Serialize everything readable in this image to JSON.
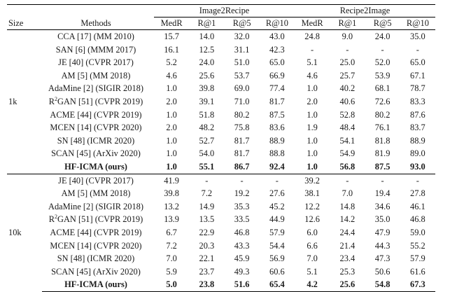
{
  "header": {
    "size": "Size",
    "methods": "Methods",
    "group1": "Image2Recipe",
    "group2": "Recipe2Image",
    "cols": [
      "MedR",
      "R@1",
      "R@5",
      "R@10",
      "MedR",
      "R@1",
      "R@5",
      "R@10"
    ]
  },
  "sections": [
    {
      "size": "1k",
      "rows": [
        {
          "method": "CCA [17] (MM 2010)",
          "values": [
            "15.7",
            "14.0",
            "32.0",
            "43.0",
            "24.8",
            "9.0",
            "24.0",
            "35.0"
          ]
        },
        {
          "method": "SAN [6] (MMM 2017)",
          "values": [
            "16.1",
            "12.5",
            "31.1",
            "42.3",
            "-",
            "-",
            "-",
            "-"
          ]
        },
        {
          "method": "JE [40] (CVPR 2017)",
          "values": [
            "5.2",
            "24.0",
            "51.0",
            "65.0",
            "5.1",
            "25.0",
            "52.0",
            "65.0"
          ]
        },
        {
          "method": "AM [5] (MM 2018)",
          "values": [
            "4.6",
            "25.6",
            "53.7",
            "66.9",
            "4.6",
            "25.7",
            "53.9",
            "67.1"
          ]
        },
        {
          "method": "AdaMine [2] (SIGIR 2018)",
          "values": [
            "1.0",
            "39.8",
            "69.0",
            "77.4",
            "1.0",
            "40.2",
            "68.1",
            "78.7"
          ]
        },
        {
          "method_pre": "R",
          "method_sup": "2",
          "method_post": "GAN [51] (CVPR 2019)",
          "values": [
            "2.0",
            "39.1",
            "71.0",
            "81.7",
            "2.0",
            "40.6",
            "72.6",
            "83.3"
          ]
        },
        {
          "method": "ACME [44] (CVPR 2019)",
          "values": [
            "1.0",
            "51.8",
            "80.2",
            "87.5",
            "1.0",
            "52.8",
            "80.2",
            "87.6"
          ]
        },
        {
          "method": "MCEN [14] (CVPR 2020)",
          "values": [
            "2.0",
            "48.2",
            "75.8",
            "83.6",
            "1.9",
            "48.4",
            "76.1",
            "83.7"
          ]
        },
        {
          "method": "SN [48] (ICMR 2020)",
          "values": [
            "1.0",
            "52.7",
            "81.7",
            "88.9",
            "1.0",
            "54.1",
            "81.8",
            "88.9"
          ]
        },
        {
          "method": "SCAN [45] (ArXiv 2020)",
          "values": [
            "1.0",
            "54.0",
            "81.7",
            "88.8",
            "1.0",
            "54.9",
            "81.9",
            "89.0"
          ]
        },
        {
          "method": "HF-ICMA (ours)",
          "bold": true,
          "values": [
            "1.0",
            "55.1",
            "86.7",
            "92.4",
            "1.0",
            "56.8",
            "87.5",
            "93.0"
          ]
        }
      ]
    },
    {
      "size": "10k",
      "rows": [
        {
          "method": "JE [40] (CVPR 2017)",
          "values": [
            "41.9",
            "-",
            "-",
            "-",
            "39.2",
            "-",
            "-",
            "-"
          ]
        },
        {
          "method": "AM [5] (MM 2018)",
          "values": [
            "39.8",
            "7.2",
            "19.2",
            "27.6",
            "38.1",
            "7.0",
            "19.4",
            "27.8"
          ]
        },
        {
          "method": "AdaMine [2] (SIGIR 2018)",
          "values": [
            "13.2",
            "14.9",
            "35.3",
            "45.2",
            "12.2",
            "14.8",
            "34.6",
            "46.1"
          ]
        },
        {
          "method_pre": "R",
          "method_sup": "2",
          "method_post": "GAN [51] (CVPR 2019)",
          "values": [
            "13.9",
            "13.5",
            "33.5",
            "44.9",
            "12.6",
            "14.2",
            "35.0",
            "46.8"
          ]
        },
        {
          "method": "ACME [44] (CVPR 2019)",
          "values": [
            "6.7",
            "22.9",
            "46.8",
            "57.9",
            "6.0",
            "24.4",
            "47.9",
            "59.0"
          ]
        },
        {
          "method": "MCEN [14] (CVPR 2020)",
          "values": [
            "7.2",
            "20.3",
            "43.3",
            "54.4",
            "6.6",
            "21.4",
            "44.3",
            "55.2"
          ]
        },
        {
          "method": "SN [48] (ICMR 2020)",
          "values": [
            "7.0",
            "22.1",
            "45.9",
            "56.9",
            "7.0",
            "23.4",
            "47.3",
            "57.9"
          ]
        },
        {
          "method": "SCAN [45] (ArXiv 2020)",
          "values": [
            "5.9",
            "23.7",
            "49.3",
            "60.6",
            "5.1",
            "25.3",
            "50.6",
            "61.6"
          ]
        },
        {
          "method": "HF-ICMA (ours)",
          "bold": true,
          "values": [
            "5.0",
            "23.8",
            "51.6",
            "65.4",
            "4.2",
            "25.6",
            "54.8",
            "67.3"
          ]
        }
      ]
    }
  ]
}
